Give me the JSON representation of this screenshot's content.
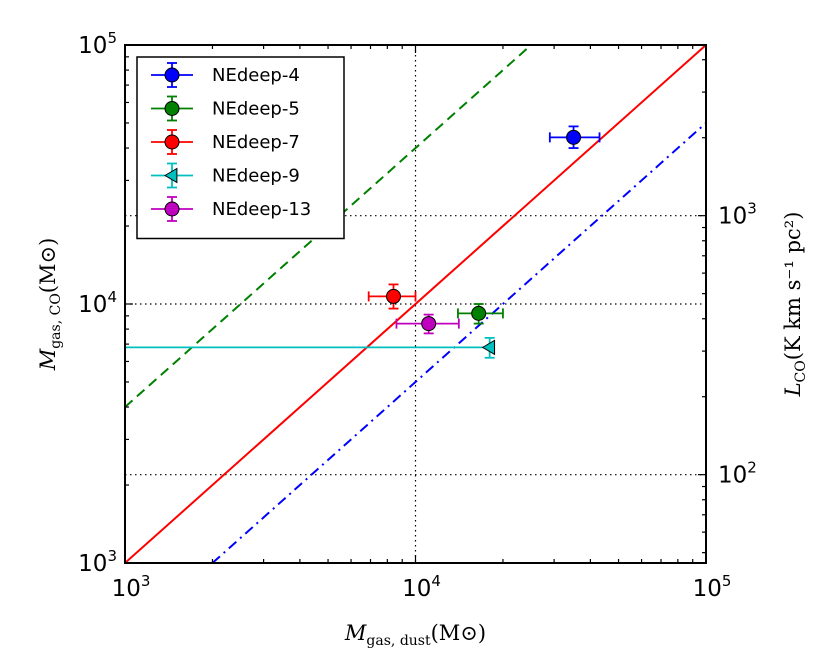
{
  "chart_data": {
    "type": "scatter",
    "xscale": "log",
    "yscale": "log",
    "xlim": [
      1000,
      100000
    ],
    "ylim": [
      1000,
      100000
    ],
    "xlabel": {
      "symbol": "M",
      "subscript": "gas, dust",
      "unit": "(M⊙)"
    },
    "ylabel": {
      "symbol": "M",
      "subscript": "gas, CO",
      "unit": "(M⊙)"
    },
    "y2label": {
      "symbol": "L",
      "subscript": "CO",
      "unit": "(K km s⁻¹ pc²)"
    },
    "x_ticks": [
      {
        "value": 1000,
        "base": "10",
        "exp": "3"
      },
      {
        "value": 10000,
        "base": "10",
        "exp": "4"
      },
      {
        "value": 100000,
        "base": "10",
        "exp": "5"
      }
    ],
    "y_ticks": [
      {
        "value": 1000,
        "base": "10",
        "exp": "3"
      },
      {
        "value": 10000,
        "base": "10",
        "exp": "4"
      },
      {
        "value": 100000,
        "base": "10",
        "exp": "5"
      }
    ],
    "y2_ticks": [
      {
        "value": 100,
        "base": "10",
        "exp": "2"
      },
      {
        "value": 1000,
        "base": "10",
        "exp": "3"
      }
    ],
    "y2_lim": [
      45.6,
      4560
    ],
    "grid": {
      "x": [
        10000
      ],
      "y": [
        10000
      ]
    },
    "lines": [
      {
        "name": "one-to-one",
        "style": "solid",
        "color": "#ff0000",
        "ratio": 1
      },
      {
        "name": "ratio-x4",
        "style": "dashed",
        "color": "#008000",
        "ratio": 4
      },
      {
        "name": "ratio-x0.5",
        "style": "dashdot",
        "color": "#0000ff",
        "ratio": 0.5
      }
    ],
    "series": [
      {
        "name": "NEdeep-4",
        "color": "#0000ff",
        "marker": "circle",
        "x": 35000,
        "y": 44000,
        "xerr": [
          29000,
          43000
        ],
        "yerr": [
          40000,
          48500
        ]
      },
      {
        "name": "NEdeep-5",
        "color": "#008000",
        "marker": "circle",
        "x": 16500,
        "y": 9200,
        "xerr": [
          14000,
          20000
        ],
        "yerr": [
          8400,
          10000
        ]
      },
      {
        "name": "NEdeep-7",
        "color": "#ff0000",
        "marker": "circle",
        "x": 8400,
        "y": 10700,
        "xerr": [
          6900,
          10000
        ],
        "yerr": [
          9600,
          11900
        ]
      },
      {
        "name": "NEdeep-9",
        "color": "#00bfbf",
        "marker": "triangle-left",
        "x": 18000,
        "y": 6800,
        "xerr": [
          1000,
          18000
        ],
        "yerr": [
          6200,
          7400
        ]
      },
      {
        "name": "NEdeep-13",
        "color": "#bf00bf",
        "marker": "circle",
        "x": 11100,
        "y": 8400,
        "xerr": [
          8600,
          14100
        ],
        "yerr": [
          7700,
          9100
        ]
      }
    ],
    "legend": {
      "loc": "upper-left"
    }
  }
}
